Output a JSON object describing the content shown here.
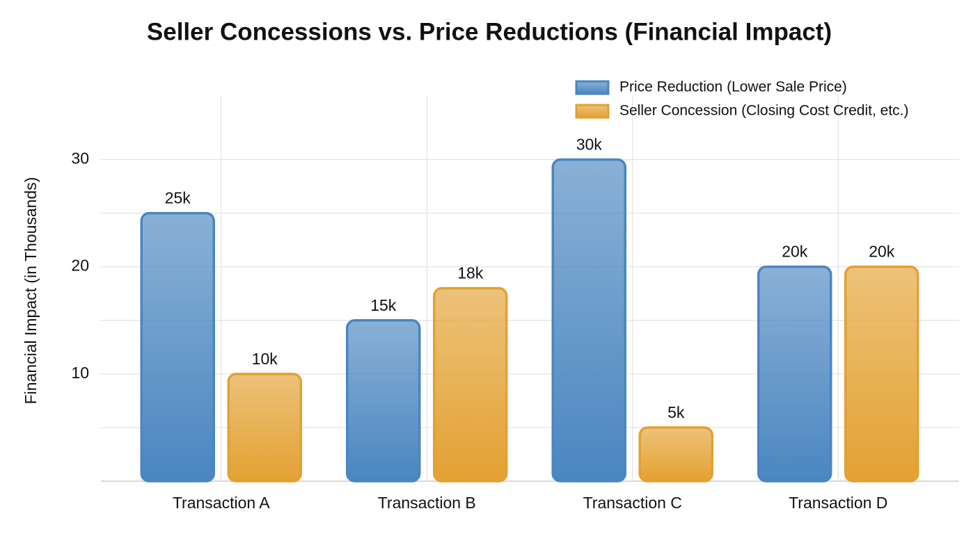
{
  "chart_data": {
    "type": "bar",
    "title": "Seller Concessions vs. Price Reductions (Financial Impact)",
    "y_label": "Financial Impact (in Thousands)",
    "categories": [
      "Transaction A",
      "Transaction B",
      "Transaction C",
      "Transaction D"
    ],
    "series": [
      {
        "name": "Price Reduction (Lower Sale Price)",
        "color": "#4a86c0",
        "values": [
          25,
          15,
          30,
          20
        ],
        "value_labels": [
          "25k",
          "15k",
          "30k",
          "20k"
        ]
      },
      {
        "name": "Seller Concession (Closing Cost Credit, etc.)",
        "color": "#e3a132",
        "values": [
          10,
          18,
          5,
          20
        ],
        "value_labels": [
          "10k",
          "18k",
          "5k",
          "20k"
        ]
      }
    ],
    "ylim": [
      0,
      36
    ],
    "yticks": [
      10,
      20,
      30
    ],
    "minor_yticks": [
      5,
      15,
      25
    ],
    "grid": true,
    "legend": "top-right"
  }
}
